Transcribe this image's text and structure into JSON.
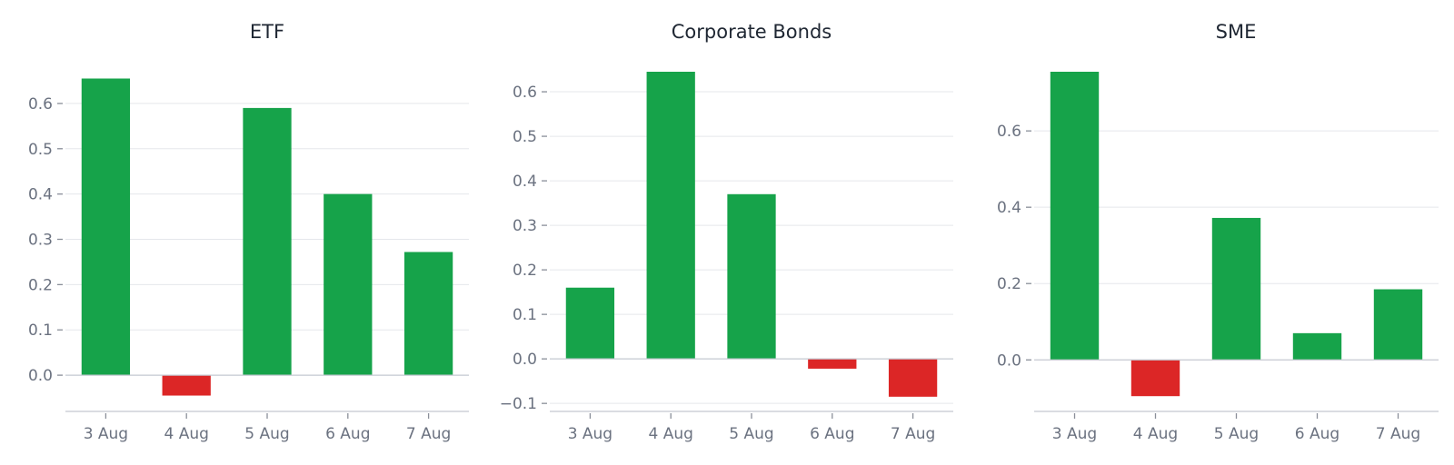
{
  "colors": {
    "positive": "#16a34a",
    "negative": "#dc2626"
  },
  "chart_data": [
    {
      "type": "bar",
      "title": "ETF",
      "categories": [
        "3 Aug",
        "4 Aug",
        "5 Aug",
        "6 Aug",
        "7 Aug"
      ],
      "values": [
        0.655,
        -0.045,
        0.59,
        0.4,
        0.272
      ],
      "yticks": [
        0.0,
        0.1,
        0.2,
        0.3,
        0.4,
        0.5,
        0.6
      ],
      "ytick_labels": [
        "0.0",
        "0.1",
        "0.2",
        "0.3",
        "0.4",
        "0.5",
        "0.6"
      ],
      "ylim": [
        -0.08,
        0.67
      ],
      "grid": true,
      "xlabel": "",
      "ylabel": ""
    },
    {
      "type": "bar",
      "title": "Corporate Bonds",
      "categories": [
        "3 Aug",
        "4 Aug",
        "5 Aug",
        "6 Aug",
        "7 Aug"
      ],
      "values": [
        0.16,
        0.645,
        0.37,
        -0.022,
        -0.085
      ],
      "yticks": [
        -0.1,
        0.0,
        0.1,
        0.2,
        0.3,
        0.4,
        0.5,
        0.6
      ],
      "ytick_labels": [
        "−0.1",
        "0.0",
        "0.1",
        "0.2",
        "0.3",
        "0.4",
        "0.5",
        "0.6"
      ],
      "ylim": [
        -0.118,
        0.645
      ],
      "grid": true,
      "xlabel": "",
      "ylabel": ""
    },
    {
      "type": "bar",
      "title": "SME",
      "categories": [
        "3 Aug",
        "4 Aug",
        "5 Aug",
        "6 Aug",
        "7 Aug"
      ],
      "values": [
        0.755,
        -0.095,
        0.372,
        0.07,
        0.185
      ],
      "yticks": [
        0.0,
        0.2,
        0.4,
        0.6
      ],
      "ytick_labels": [
        "0.0",
        "0.2",
        "0.4",
        "0.6"
      ],
      "ylim": [
        -0.135,
        0.755
      ],
      "grid": true,
      "xlabel": "",
      "ylabel": ""
    }
  ]
}
